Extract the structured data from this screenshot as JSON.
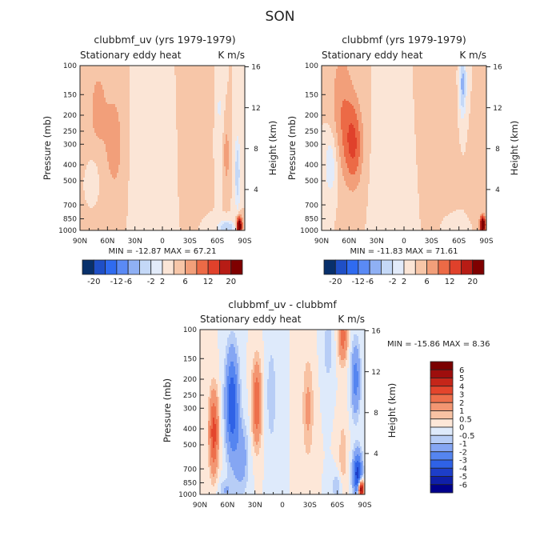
{
  "figure_title": "SON",
  "colors": {
    "palette_plus_minus_20": [
      "#08306b",
      "#1f4fc6",
      "#2f6bf0",
      "#5a8af5",
      "#8fb0f4",
      "#c4d8f7",
      "#e2ebfa",
      "#fbe5d6",
      "#f7c6a8",
      "#f29f7a",
      "#ec6a46",
      "#e0412b",
      "#b71c15",
      "#7f0000"
    ],
    "palette_plus_minus_6": [
      "#00008b",
      "#0f1fa8",
      "#1d3ec8",
      "#2f62e6",
      "#5585f0",
      "#85a6f3",
      "#b7cdf6",
      "#deeafb",
      "#fde7d8",
      "#f8c2a3",
      "#f39672",
      "#ed6f4b",
      "#e3452c",
      "#c52619",
      "#9e0e0d",
      "#7a0000"
    ]
  },
  "chart_data": [
    {
      "type": "heatmap",
      "title": "clubbmf_uv (yrs 1979-1979)",
      "subtitle_left": "Stationary eddy heat",
      "subtitle_right": "K m/s",
      "ylabel": "Pressure (mb)",
      "ylabel_right": "Height (km)",
      "x_ticks": [
        "90N",
        "60N",
        "30N",
        "0",
        "30S",
        "60S",
        "90S"
      ],
      "y_ticks": [
        "100",
        "150",
        "200",
        "250",
        "300",
        "400",
        "500",
        "700",
        "850",
        "1000"
      ],
      "y_ticks_right": [
        "16",
        "12",
        "8",
        "4"
      ],
      "stats": "MIN = -12.87   MAX =  67.21",
      "colorbar_labels": [
        "-20",
        "-12",
        "-6",
        "-2",
        "2",
        "6",
        "12",
        "20"
      ],
      "min": -12.87,
      "max": 67.21,
      "features": [
        {
          "lat": 70,
          "p": 190,
          "v": 2.5,
          "slat": 14,
          "sp": 0.9
        },
        {
          "lat": 52,
          "p": 300,
          "v": 3.5,
          "slat": 8,
          "sp": 0.6
        },
        {
          "lat": 75,
          "p": 450,
          "v": -1.5,
          "slat": 8,
          "sp": 0.35
        },
        {
          "lat": 18,
          "p": 380,
          "v": -0.6,
          "slat": 12,
          "sp": 0.8
        },
        {
          "lat": -28,
          "p": 300,
          "v": 0.9,
          "slat": 4,
          "sp": 0.45
        },
        {
          "lat": -45,
          "p": 150,
          "v": 0.9,
          "slat": 10,
          "sp": 0.7
        },
        {
          "lat": -62,
          "p": 180,
          "v": -2.2,
          "slat": 4,
          "sp": 0.6
        },
        {
          "lat": -70,
          "p": 350,
          "v": 3.5,
          "slat": 3,
          "sp": 0.4
        },
        {
          "lat": -82,
          "p": 450,
          "v": -6,
          "slat": 3,
          "sp": 0.5
        },
        {
          "lat": -84,
          "p": 940,
          "v": 18,
          "slat": 3,
          "sp": 0.12
        },
        {
          "lat": -70,
          "p": 960,
          "v": -6,
          "slat": 10,
          "sp": 0.1
        }
      ]
    },
    {
      "type": "heatmap",
      "title": "clubbmf (yrs 1979-1979)",
      "subtitle_left": "Stationary eddy heat",
      "subtitle_right": "K m/s",
      "ylabel": "Pressure (mb)",
      "ylabel_right": "Height (km)",
      "x_ticks": [
        "90N",
        "60N",
        "30N",
        "0",
        "30S",
        "60S",
        "90S"
      ],
      "y_ticks": [
        "100",
        "150",
        "200",
        "250",
        "300",
        "400",
        "500",
        "700",
        "850",
        "1000"
      ],
      "y_ticks_right": [
        "16",
        "12",
        "8",
        "4"
      ],
      "stats": "MIN = -11.83   MAX =  71.61",
      "colorbar_labels": [
        "-20",
        "-12",
        "-6",
        "-2",
        "2",
        "6",
        "12",
        "20"
      ],
      "min": -11.83,
      "max": 71.61,
      "features": [
        {
          "lat": 68,
          "p": 180,
          "v": 3.5,
          "slat": 12,
          "sp": 0.9
        },
        {
          "lat": 55,
          "p": 300,
          "v": 6,
          "slat": 10,
          "sp": 0.6
        },
        {
          "lat": 80,
          "p": 400,
          "v": -4,
          "slat": 7,
          "sp": 0.45
        },
        {
          "lat": 25,
          "p": 450,
          "v": -0.6,
          "slat": 12,
          "sp": 0.8
        },
        {
          "lat": -50,
          "p": 150,
          "v": 0.9,
          "slat": 12,
          "sp": 0.7
        },
        {
          "lat": -64,
          "p": 130,
          "v": -7,
          "slat": 4,
          "sp": 0.45
        },
        {
          "lat": -76,
          "p": 450,
          "v": 1.5,
          "slat": 5,
          "sp": 0.5
        },
        {
          "lat": -86,
          "p": 930,
          "v": 18,
          "slat": 3,
          "sp": 0.12
        },
        {
          "lat": -62,
          "p": 960,
          "v": -1.5,
          "slat": 8,
          "sp": 0.1
        }
      ]
    },
    {
      "type": "heatmap",
      "title": "clubbmf_uv - clubbmf",
      "subtitle_left": "Stationary eddy heat",
      "subtitle_right": "K m/s",
      "ylabel": "Pressure (mb)",
      "ylabel_right": "Height (km)",
      "x_ticks": [
        "90N",
        "60N",
        "30N",
        "0",
        "30S",
        "60S",
        "90S"
      ],
      "y_ticks": [
        "100",
        "150",
        "200",
        "250",
        "300",
        "400",
        "500",
        "700",
        "850",
        "1000"
      ],
      "y_ticks_right": [
        "16",
        "12",
        "8",
        "4"
      ],
      "stats": "MIN = -15.86   MAX =   8.36",
      "colorbar_labels": [
        "6",
        "5",
        "4",
        "3",
        "2",
        "1",
        "0.5",
        "0",
        "-0.5",
        "-1",
        "-2",
        "-3",
        "-4",
        "-5",
        "-6"
      ],
      "min": -15.86,
      "max": 8.36,
      "features": [
        {
          "lat": 75,
          "p": 420,
          "v": 3.5,
          "slat": 5,
          "sp": 0.55
        },
        {
          "lat": 55,
          "p": 280,
          "v": -4,
          "slat": 7,
          "sp": 0.7
        },
        {
          "lat": 45,
          "p": 600,
          "v": -1.5,
          "slat": 8,
          "sp": 0.5
        },
        {
          "lat": 28,
          "p": 280,
          "v": 3,
          "slat": 5,
          "sp": 0.55
        },
        {
          "lat": 12,
          "p": 250,
          "v": -0.8,
          "slat": 6,
          "sp": 0.8
        },
        {
          "lat": -28,
          "p": 300,
          "v": 1.2,
          "slat": 6,
          "sp": 0.7
        },
        {
          "lat": -50,
          "p": 130,
          "v": -0.8,
          "slat": 6,
          "sp": 0.5
        },
        {
          "lat": -66,
          "p": 110,
          "v": 2.5,
          "slat": 5,
          "sp": 0.35
        },
        {
          "lat": -66,
          "p": 600,
          "v": 0.8,
          "slat": 5,
          "sp": 0.6
        },
        {
          "lat": -80,
          "p": 200,
          "v": -2.5,
          "slat": 5,
          "sp": 0.5
        },
        {
          "lat": -82,
          "p": 750,
          "v": -4.5,
          "slat": 5,
          "sp": 0.3
        },
        {
          "lat": -86,
          "p": 930,
          "v": 7,
          "slat": 3,
          "sp": 0.12
        },
        {
          "lat": -60,
          "p": 900,
          "v": -1,
          "slat": 6,
          "sp": 0.2
        },
        {
          "lat": 62,
          "p": 940,
          "v": -1,
          "slat": 8,
          "sp": 0.15
        }
      ]
    }
  ]
}
